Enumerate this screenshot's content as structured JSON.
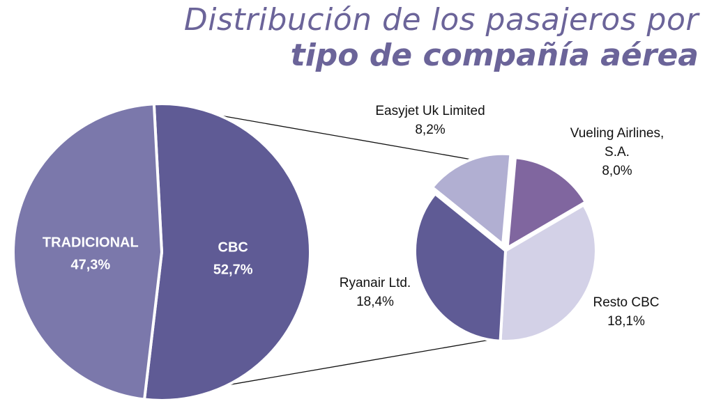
{
  "title": {
    "line1": "Distribución de los pasajeros por",
    "line2": "tipo de compañía aérea"
  },
  "chart_data": [
    {
      "type": "pie",
      "slices": [
        {
          "label": "TRADICIONAL",
          "value": 47.3,
          "value_label": "47,3%",
          "color": "#7b78ab"
        },
        {
          "label": "CBC",
          "value": 52.7,
          "value_label": "52,7%",
          "color": "#5f5b95"
        }
      ],
      "label_position": "inside"
    },
    {
      "type": "pie",
      "slices": [
        {
          "label": "Vueling Airlines, S.A.",
          "label_lines": [
            "Vueling Airlines,",
            "S.A."
          ],
          "value": 8.0,
          "value_label": "8,0%",
          "color": "#80669f"
        },
        {
          "label": "Resto CBC",
          "label_lines": [
            "Resto CBC"
          ],
          "value": 18.1,
          "value_label": "18,1%",
          "color": "#d3d1e7"
        },
        {
          "label": "Ryanair Ltd.",
          "label_lines": [
            "Ryanair Ltd."
          ],
          "value": 18.4,
          "value_label": "18,4%",
          "color": "#5f5b95"
        },
        {
          "label": "Easyjet Uk Limited",
          "label_lines": [
            "Easyjet Uk Limited"
          ],
          "value": 8.2,
          "value_label": "8,2%",
          "color": "#b1afd2"
        }
      ],
      "label_position": "outside",
      "breakdown_of": "CBC"
    }
  ]
}
